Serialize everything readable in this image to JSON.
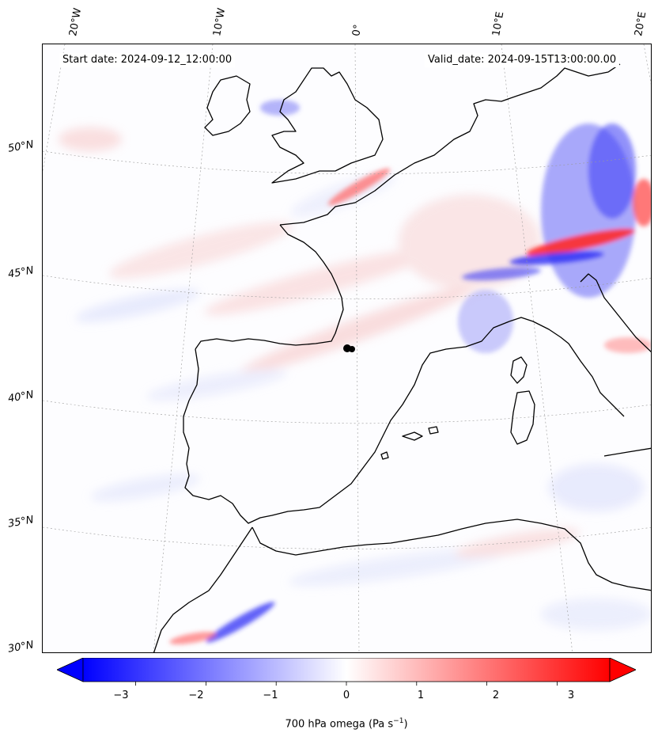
{
  "header": {
    "start_date": "Start date: 2024-09-12_12:00:00",
    "valid_date": "Valid_date: 2024-09-15T13:00:00.00"
  },
  "axes": {
    "lon_labels": [
      "20°W",
      "10°W",
      "0°",
      "10°E",
      "20°E"
    ],
    "lat_labels": [
      "50°N",
      "45°N",
      "40°N",
      "35°N",
      "30°N"
    ]
  },
  "colorbar": {
    "ticks": [
      "−3",
      "−2",
      "−1",
      "0",
      "1",
      "2",
      "3"
    ],
    "tick_values": [
      -3,
      -2,
      -1,
      0,
      1,
      2,
      3
    ],
    "range": [
      -3.75,
      3.75
    ],
    "label_prefix": "700 hPa omega (Pa s",
    "label_exp": "−1",
    "label_suffix": ")",
    "colors": {
      "min": "#0000ff",
      "mid": "#ffffff",
      "max": "#ff0000"
    },
    "extend": "both"
  },
  "field": {
    "variable": "700 hPa omega",
    "units": "Pa s−1"
  },
  "colors": {
    "coast": "#000000",
    "grid": "#999999"
  }
}
